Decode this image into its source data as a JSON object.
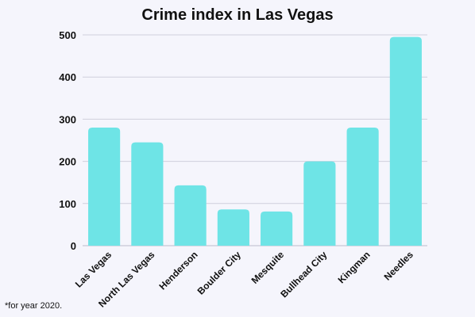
{
  "chart_data": {
    "type": "bar",
    "title": "Crime index in Las Vegas",
    "categories": [
      "Las Vegas",
      "North Las Vegas",
      "Henderson",
      "Boulder City",
      "Mesquite",
      "Bullhead City",
      "Kingman",
      "Needles"
    ],
    "values": [
      280,
      245,
      143,
      86,
      81,
      200,
      280,
      495
    ],
    "ylim": [
      0,
      500
    ],
    "yticks": [
      0,
      100,
      200,
      300,
      400,
      500
    ],
    "grid": true,
    "legend": "none",
    "xlabel": "",
    "ylabel": "",
    "footnote": "*for year 2020."
  },
  "colors": {
    "bar": "#6ee4e6",
    "grid": "#cfcfdc",
    "text": "#111111",
    "background": "#f5f5fc"
  }
}
